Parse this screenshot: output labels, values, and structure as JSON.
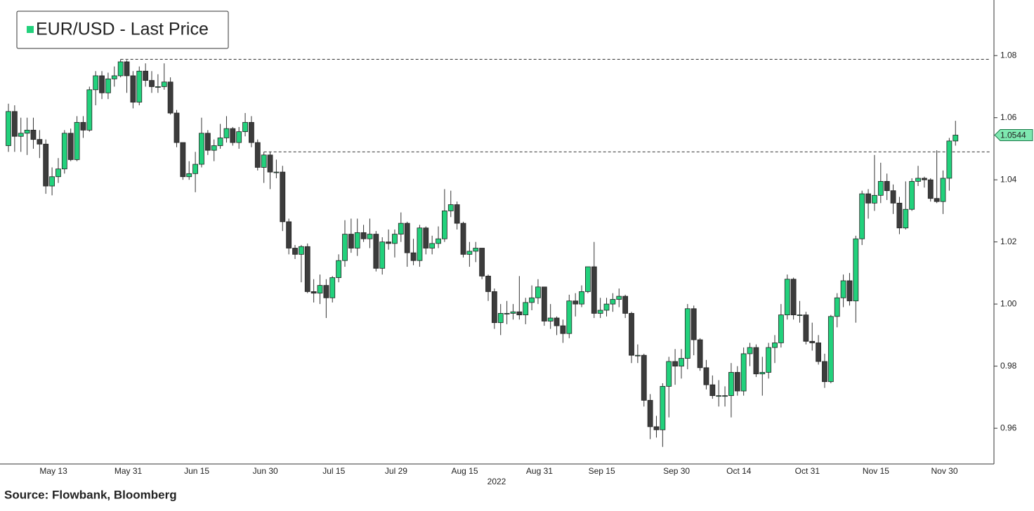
{
  "chart_data": {
    "type": "candlestick",
    "source": "Source: Flowbank, Bloomberg",
    "x_label": "2022",
    "categories": [
      null,
      null,
      null,
      null,
      null,
      null,
      null,
      "May 13",
      null,
      null,
      null,
      null,
      null,
      null,
      null,
      null,
      null,
      null,
      null,
      "May 31",
      null,
      null,
      null,
      null,
      null,
      null,
      null,
      null,
      null,
      null,
      "Jun 15",
      null,
      null,
      null,
      null,
      null,
      null,
      null,
      null,
      null,
      null,
      "Jun 30",
      null,
      null,
      null,
      null,
      null,
      null,
      null,
      null,
      null,
      null,
      "Jul 15",
      null,
      null,
      null,
      null,
      null,
      null,
      null,
      null,
      null,
      "Jul 29",
      null,
      null,
      null,
      null,
      null,
      null,
      null,
      null,
      null,
      null,
      "Aug 15",
      null,
      null,
      null,
      null,
      null,
      null,
      null,
      null,
      null,
      null,
      null,
      "Aug 31",
      null,
      null,
      null,
      null,
      null,
      null,
      null,
      null,
      null,
      "Sep 15",
      null,
      null,
      null,
      null,
      null,
      null,
      null,
      null,
      null,
      null,
      null,
      "Sep 30",
      null,
      null,
      null,
      null,
      null,
      null,
      null,
      null,
      null,
      "Oct 14",
      null,
      null,
      null,
      null,
      null,
      null,
      null,
      null,
      null,
      null,
      "Oct 31",
      null,
      null,
      null,
      null,
      null,
      null,
      null,
      null,
      null,
      null,
      "Nov 15",
      null,
      null,
      null,
      null,
      null,
      null,
      null,
      null,
      null,
      null,
      "Nov 30",
      null,
      null
    ],
    "series": [
      {
        "name": "EUR/USD - Last Price",
        "color": "#22d17c",
        "down_color": "#3c3c3c",
        "open": [
          1.051,
          1.062,
          1.054,
          1.055,
          1.056,
          1.053,
          1.0515,
          1.038,
          1.041,
          1.0435,
          1.055,
          1.0465,
          1.0585,
          1.056,
          1.069,
          1.0735,
          1.068,
          1.0725,
          1.0735,
          1.078,
          1.0735,
          1.065,
          1.075,
          1.072,
          1.07,
          1.07,
          1.0715,
          1.0615,
          1.052,
          1.041,
          1.042,
          1.045,
          1.055,
          1.0495,
          1.051,
          1.0535,
          1.0565,
          1.052,
          1.0555,
          1.0585,
          1.052,
          1.044,
          1.048,
          1.0425,
          1.0425,
          1.0265,
          1.018,
          1.016,
          1.0185,
          1.004,
          1.0035,
          1.006,
          1.002,
          1.0085,
          1.014,
          1.0225,
          1.018,
          1.023,
          1.021,
          1.0225,
          1.0115,
          1.02,
          1.0195,
          1.0225,
          1.026,
          1.0165,
          1.014,
          1.0245,
          1.018,
          1.0195,
          1.021,
          1.03,
          1.032,
          1.026,
          1.016,
          1.017,
          1.018,
          1.009,
          1.004,
          0.994,
          0.997,
          0.997,
          0.9975,
          0.9965,
          1.0005,
          1.002,
          1.0055,
          0.9945,
          0.9955,
          0.993,
          0.9905,
          1.001,
          1.0,
          1.004,
          1.012,
          0.997,
          0.998,
          1.0,
          1.0015,
          1.0025,
          0.997,
          0.9835,
          0.9835,
          0.969,
          0.9605,
          0.9595,
          0.9735,
          0.9815,
          0.98,
          0.9825,
          0.9985,
          0.9885,
          0.9795,
          0.974,
          0.9705,
          0.9705,
          0.9705,
          0.978,
          0.972,
          0.984,
          0.986,
          0.9775,
          0.978,
          0.986,
          0.9875,
          0.9965,
          1.008,
          0.9965,
          0.9965,
          0.988,
          0.9875,
          0.9815,
          0.975,
          0.996,
          1.002,
          1.0075,
          1.001,
          1.021,
          1.0355,
          1.0325,
          1.035,
          1.0395,
          1.0365,
          1.0325,
          1.0245,
          1.0305,
          1.0395,
          1.0405,
          1.04,
          1.034,
          1.033,
          1.0405,
          1.0525
        ],
        "high": [
          1.0645,
          1.064,
          1.06,
          1.06,
          1.06,
          1.056,
          1.053,
          1.044,
          1.047,
          1.056,
          1.0565,
          1.0605,
          1.0605,
          1.07,
          1.075,
          1.075,
          1.0745,
          1.0765,
          1.0788,
          1.0785,
          1.075,
          1.0765,
          1.0775,
          1.075,
          1.074,
          1.0775,
          1.073,
          1.0625,
          1.052,
          1.046,
          1.049,
          1.06,
          1.056,
          1.053,
          1.058,
          1.0605,
          1.057,
          1.057,
          1.0615,
          1.0605,
          1.053,
          1.049,
          1.049,
          1.0465,
          1.0445,
          1.0275,
          1.019,
          1.019,
          1.0195,
          1.008,
          1.0095,
          1.008,
          1.009,
          1.016,
          1.027,
          1.0275,
          1.0275,
          1.0255,
          1.0275,
          1.0235,
          1.0215,
          1.024,
          1.024,
          1.0295,
          1.0265,
          1.021,
          1.0255,
          1.025,
          1.022,
          1.025,
          1.037,
          1.0365,
          1.033,
          1.0265,
          1.02,
          1.02,
          1.018,
          1.0095,
          1.005,
          1.0,
          1.001,
          1.0,
          1.009,
          1.002,
          1.006,
          1.008,
          1.0055,
          1.0,
          0.996,
          0.995,
          1.003,
          1.0035,
          1.006,
          1.012,
          1.02,
          1.002,
          1.002,
          1.0035,
          1.005,
          1.003,
          0.9975,
          0.987,
          0.984,
          0.971,
          0.964,
          0.9745,
          0.983,
          0.9855,
          0.9855,
          1.0,
          0.9995,
          0.989,
          0.982,
          0.977,
          0.9755,
          0.9735,
          0.981,
          0.98,
          0.986,
          0.9875,
          0.987,
          0.983,
          0.9875,
          0.99,
          1.0,
          1.0095,
          1.0085,
          1.001,
          0.9975,
          0.994,
          0.99,
          0.984,
          0.9965,
          1.0035,
          1.0095,
          1.01,
          1.022,
          1.0365,
          1.037,
          1.048,
          1.0455,
          1.042,
          1.0385,
          1.0345,
          1.0395,
          1.0405,
          1.0445,
          1.041,
          1.0405,
          1.0495,
          1.043,
          1.0535,
          1.059
        ],
        "low": [
          1.049,
          1.049,
          1.049,
          1.048,
          1.05,
          1.047,
          1.0355,
          1.035,
          1.039,
          1.042,
          1.046,
          1.046,
          1.0535,
          1.0555,
          1.064,
          1.066,
          1.066,
          1.07,
          1.073,
          1.068,
          1.063,
          1.064,
          1.07,
          1.068,
          1.068,
          1.069,
          1.061,
          1.0505,
          1.04,
          1.04,
          1.036,
          1.044,
          1.048,
          1.046,
          1.05,
          1.052,
          1.051,
          1.05,
          1.054,
          1.0505,
          1.043,
          1.039,
          1.037,
          1.0405,
          1.0235,
          1.016,
          1.0145,
          1.007,
          1.0035,
          1.0005,
          1.0,
          0.9955,
          1.0005,
          1.007,
          1.012,
          1.0165,
          1.0155,
          1.02,
          1.018,
          1.0105,
          1.0095,
          1.0175,
          1.015,
          1.02,
          1.012,
          1.0125,
          1.012,
          1.016,
          1.016,
          1.018,
          1.02,
          1.028,
          1.024,
          1.015,
          1.012,
          1.0135,
          1.008,
          1.001,
          0.992,
          0.99,
          0.9935,
          0.995,
          0.995,
          0.9935,
          0.998,
          1.0,
          0.993,
          0.992,
          0.99,
          0.9875,
          0.989,
          0.996,
          0.999,
          1.0035,
          0.9955,
          0.9955,
          0.996,
          0.9975,
          0.999,
          0.9955,
          0.981,
          0.981,
          0.967,
          0.9565,
          0.957,
          0.954,
          0.9635,
          0.974,
          0.976,
          0.979,
          0.9835,
          0.9785,
          0.9725,
          0.9695,
          0.967,
          0.967,
          0.9635,
          0.9705,
          0.9705,
          0.98,
          0.9765,
          0.9705,
          0.976,
          0.981,
          0.986,
          0.995,
          0.995,
          0.994,
          0.987,
          0.985,
          0.9805,
          0.973,
          0.9745,
          0.9925,
          0.999,
          0.9995,
          0.994,
          1.019,
          1.0275,
          1.03,
          1.0325,
          1.0335,
          1.029,
          1.0225,
          1.024,
          1.03,
          1.038,
          1.0375,
          1.033,
          1.0325,
          1.029,
          1.0365,
          1.051
        ],
        "close": [
          1.062,
          1.054,
          1.055,
          1.056,
          1.053,
          1.0515,
          1.038,
          1.041,
          1.0435,
          1.055,
          1.0465,
          1.0585,
          1.056,
          1.069,
          1.0735,
          1.068,
          1.0725,
          1.0735,
          1.078,
          1.0735,
          1.065,
          1.075,
          1.072,
          1.07,
          1.07,
          1.0715,
          1.0615,
          1.052,
          1.041,
          1.042,
          1.045,
          1.055,
          1.0495,
          1.051,
          1.0535,
          1.0565,
          1.052,
          1.0555,
          1.0585,
          1.052,
          1.044,
          1.048,
          1.0425,
          1.0425,
          1.0265,
          1.018,
          1.016,
          1.0185,
          1.004,
          1.0035,
          1.006,
          1.002,
          1.0085,
          1.014,
          1.0225,
          1.018,
          1.023,
          1.021,
          1.0225,
          1.0115,
          1.02,
          1.0195,
          1.0225,
          1.026,
          1.0165,
          1.014,
          1.0245,
          1.018,
          1.0195,
          1.021,
          1.03,
          1.032,
          1.026,
          1.016,
          1.017,
          1.018,
          1.009,
          1.004,
          0.994,
          0.997,
          0.997,
          0.9975,
          0.9965,
          1.0005,
          1.002,
          1.0055,
          0.9945,
          0.9955,
          0.993,
          0.9905,
          1.001,
          1.0,
          1.004,
          1.012,
          0.997,
          0.998,
          1.0,
          1.0015,
          1.0025,
          0.997,
          0.9835,
          0.9835,
          0.969,
          0.9605,
          0.9595,
          0.9735,
          0.9815,
          0.98,
          0.9825,
          0.9985,
          0.9885,
          0.9795,
          0.974,
          0.9705,
          0.9705,
          0.9705,
          0.978,
          0.972,
          0.984,
          0.986,
          0.9775,
          0.978,
          0.986,
          0.9875,
          0.9965,
          1.008,
          0.9965,
          0.9965,
          0.988,
          0.9875,
          0.9815,
          0.975,
          0.996,
          1.002,
          1.0075,
          1.001,
          1.021,
          1.0355,
          1.0325,
          1.035,
          1.0395,
          1.0365,
          1.0325,
          1.0245,
          1.0305,
          1.0395,
          1.0405,
          1.04,
          1.034,
          1.033,
          1.0405,
          1.0525,
          1.0544
        ]
      }
    ],
    "hlines": [
      {
        "value": 1.0788,
        "from": 18
      },
      {
        "value": 1.049,
        "from": 41
      }
    ],
    "ylim": [
      0.9485,
      1.0979
    ],
    "yticks": [
      0.96,
      0.98,
      {
        "value": 1,
        "label": "1.00"
      },
      1.02,
      1.04,
      1.06,
      1.08
    ]
  }
}
